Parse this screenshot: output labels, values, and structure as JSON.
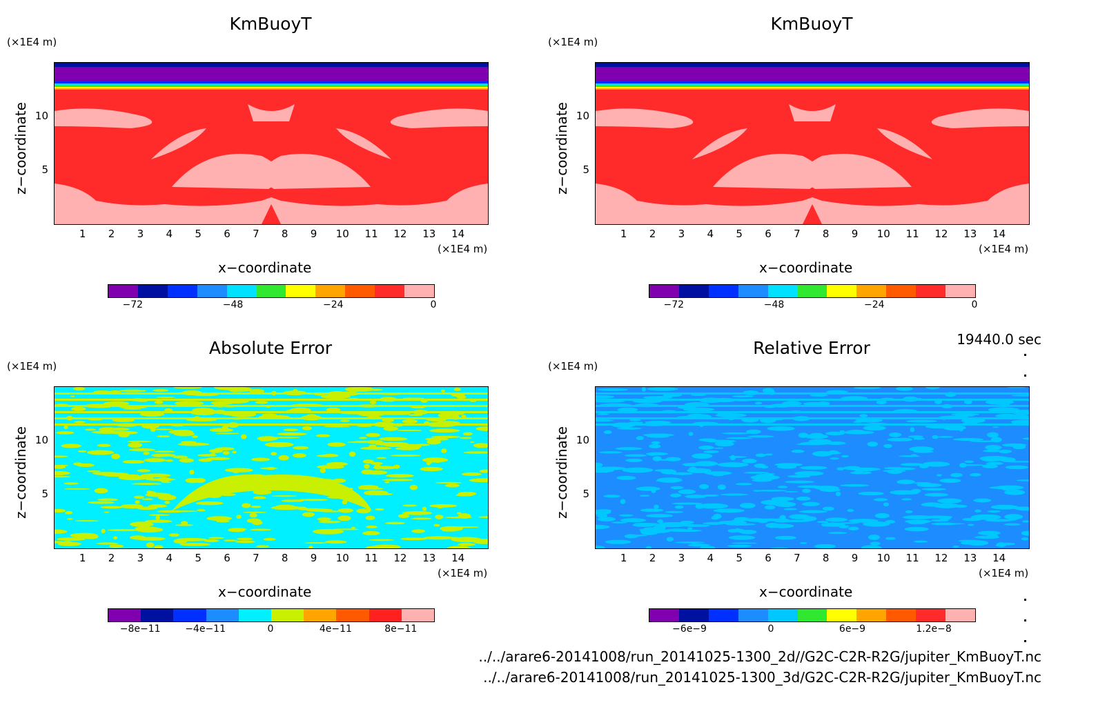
{
  "time_label": "19440.0 sec",
  "footer": {
    "line1": "../../arare6-20141008/run_20141025-1300_2d//G2C-C2R-R2G/jupiter_KmBuoyT.nc",
    "line2": "../../arare6-20141008/run_20141025-1300_3d/G2C-C2R-R2G/jupiter_KmBuoyT.nc"
  },
  "common": {
    "xlabel": "x−coordinate",
    "ylabel": "z−coordinate",
    "unit": "(×1E4 m)",
    "xticks": [
      "1",
      "2",
      "3",
      "4",
      "5",
      "6",
      "7",
      "8",
      "9",
      "10",
      "11",
      "12",
      "13",
      "14"
    ],
    "yticks": [
      "5",
      "10"
    ]
  },
  "chart_data": [
    {
      "type": "heatmap",
      "title": "KmBuoyT",
      "xlabel": "x−coordinate",
      "ylabel": "z−coordinate",
      "xlim": [
        0,
        15
      ],
      "ylim": [
        0,
        15
      ],
      "colorbar": {
        "ticks": [
          "−72",
          "−48",
          "−24",
          "0"
        ],
        "tick_values": [
          -72,
          -48,
          -24,
          0
        ],
        "range": [
          -78,
          0
        ],
        "colors": [
          "#8000b0",
          "#0010a0",
          "#0030ff",
          "#1c8cff",
          "#00e0ff",
          "#30e830",
          "#ffff00",
          "#ffa500",
          "#ff5a00",
          "#ff2a2a",
          "#ffb0b0"
        ]
      },
      "dominant_colors": [
        "#ff2a2a",
        "#ffb0b0",
        "#8000b0",
        "#0010a0"
      ]
    },
    {
      "type": "heatmap",
      "title": "KmBuoyT",
      "xlabel": "x−coordinate",
      "ylabel": "z−coordinate",
      "xlim": [
        0,
        15
      ],
      "ylim": [
        0,
        15
      ],
      "colorbar": {
        "ticks": [
          "−72",
          "−48",
          "−24",
          "0"
        ],
        "tick_values": [
          -72,
          -48,
          -24,
          0
        ],
        "range": [
          -78,
          0
        ],
        "colors": [
          "#8000b0",
          "#0010a0",
          "#0030ff",
          "#1c8cff",
          "#00e0ff",
          "#30e830",
          "#ffff00",
          "#ffa500",
          "#ff5a00",
          "#ff2a2a",
          "#ffb0b0"
        ]
      },
      "dominant_colors": [
        "#ff2a2a",
        "#ffb0b0",
        "#8000b0",
        "#0010a0"
      ]
    },
    {
      "type": "heatmap",
      "title": "Absolute Error",
      "xlabel": "x−coordinate",
      "ylabel": "z−coordinate",
      "xlim": [
        0,
        15
      ],
      "ylim": [
        0,
        15
      ],
      "colorbar": {
        "ticks": [
          "−8e−11",
          "−4e−11",
          "0",
          "4e−11",
          "8e−11"
        ],
        "tick_values": [
          -8e-11,
          -4e-11,
          0,
          4e-11,
          8e-11
        ],
        "range": [
          -1e-10,
          1e-10
        ],
        "colors": [
          "#8000b0",
          "#0010a0",
          "#0030ff",
          "#1c8cff",
          "#00f0ff",
          "#c8f000",
          "#ffa500",
          "#ff5a00",
          "#ff2020",
          "#ffb0b0"
        ]
      },
      "dominant_colors": [
        "#00f0ff",
        "#c8f000"
      ]
    },
    {
      "type": "heatmap",
      "title": "Relative Error",
      "xlabel": "x−coordinate",
      "ylabel": "z−coordinate",
      "xlim": [
        0,
        15
      ],
      "ylim": [
        0,
        15
      ],
      "colorbar": {
        "ticks": [
          "−6e−9",
          "0",
          "6e−9",
          "1.2e−8"
        ],
        "tick_values": [
          -6e-09,
          0,
          6e-09,
          1.2e-08
        ],
        "range": [
          -9e-09,
          1.5e-08
        ],
        "colors": [
          "#8000b0",
          "#0010a0",
          "#0030ff",
          "#1c8cff",
          "#00c8ff",
          "#30e830",
          "#ffff00",
          "#ffa500",
          "#ff5a00",
          "#ff2a2a",
          "#ffb0b0"
        ]
      },
      "dominant_colors": [
        "#1c8cff",
        "#00c8ff"
      ]
    }
  ]
}
